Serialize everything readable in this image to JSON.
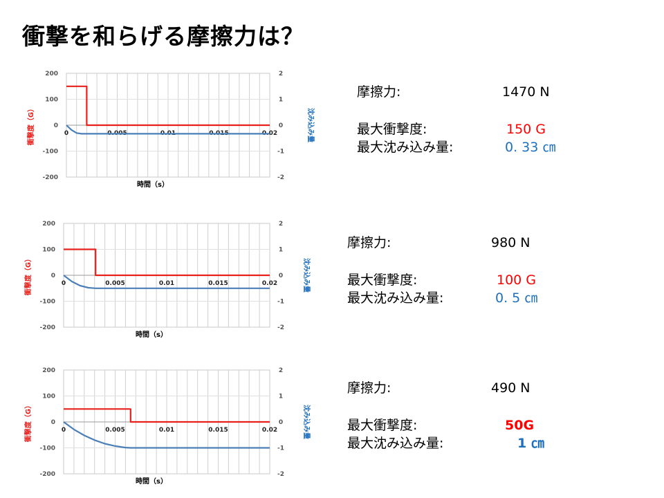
{
  "slide": {
    "title": "衝撃を和らげる摩擦力は？"
  },
  "chart_data": [
    {
      "type": "line",
      "x": [
        0,
        0.002,
        0.002,
        0.02
      ],
      "series": [
        {
          "name": "衝撃度（G）",
          "axis": "left",
          "color": "#e8201c",
          "x": [
            0,
            0.002,
            0.002,
            0.02
          ],
          "values": [
            150,
            150,
            0,
            0
          ]
        },
        {
          "name": "沈み込み量",
          "axis": "right",
          "color": "#4a7fb8",
          "x": [
            0,
            0.0005,
            0.001,
            0.0015,
            0.002,
            0.0025,
            0.003,
            0.02
          ],
          "values": [
            0,
            -0.18,
            -0.3,
            -0.33,
            -0.33,
            -0.33,
            -0.33,
            -0.33
          ]
        }
      ],
      "xlabel": "時間（s）",
      "ylabel": "衝撃度（G）",
      "y2label": "沈み込み量",
      "xlim": [
        0,
        0.02
      ],
      "ylim": [
        -200,
        200
      ],
      "y2lim": [
        -2,
        2
      ],
      "xticks": [
        "0",
        "0.005",
        "0.01",
        "0.015",
        "0.02"
      ],
      "yticks": [
        "200",
        "100",
        "0",
        "-100",
        "-200"
      ],
      "y2ticks": [
        "2",
        "1",
        "0",
        "-1",
        "-2"
      ],
      "grid": true
    },
    {
      "type": "line",
      "x": [
        0,
        0.0031,
        0.0031,
        0.02
      ],
      "series": [
        {
          "name": "衝撃度（G）",
          "axis": "left",
          "color": "#e8201c",
          "x": [
            0,
            0.0031,
            0.0031,
            0.02
          ],
          "values": [
            100,
            100,
            0,
            0
          ]
        },
        {
          "name": "沈み込み量",
          "axis": "right",
          "color": "#4a7fb8",
          "x": [
            0,
            0.0008,
            0.0016,
            0.0024,
            0.0031,
            0.004,
            0.02
          ],
          "values": [
            0,
            -0.24,
            -0.4,
            -0.48,
            -0.5,
            -0.5,
            -0.5
          ]
        }
      ],
      "xlabel": "時間（s）",
      "ylabel": "衝撃度（G）",
      "y2label": "沈み込み量",
      "xlim": [
        0,
        0.02
      ],
      "ylim": [
        -200,
        200
      ],
      "y2lim": [
        -2,
        2
      ],
      "xticks": [
        "0",
        "0.005",
        "0.01",
        "0.015",
        "0.02"
      ],
      "yticks": [
        "200",
        "100",
        "0",
        "-100",
        "-200"
      ],
      "y2ticks": [
        "2",
        "1",
        "0",
        "-1",
        "-2"
      ],
      "grid": true
    },
    {
      "type": "line",
      "x": [
        0,
        0.0065,
        0.0065,
        0.02
      ],
      "series": [
        {
          "name": "衝撃度（G）",
          "axis": "left",
          "color": "#e8201c",
          "x": [
            0,
            0.0065,
            0.0065,
            0.02
          ],
          "values": [
            50,
            50,
            0,
            0
          ]
        },
        {
          "name": "沈み込み量",
          "axis": "right",
          "color": "#4a7fb8",
          "x": [
            0,
            0.001,
            0.002,
            0.003,
            0.004,
            0.005,
            0.006,
            0.0065,
            0.02
          ],
          "values": [
            0,
            -0.29,
            -0.52,
            -0.7,
            -0.84,
            -0.93,
            -0.99,
            -1.0,
            -1.0
          ]
        }
      ],
      "xlabel": "時間（s）",
      "ylabel": "衝撃度（G）",
      "y2label": "沈み込み量",
      "xlim": [
        0,
        0.02
      ],
      "ylim": [
        -200,
        200
      ],
      "y2lim": [
        -2,
        2
      ],
      "xticks": [
        "0",
        "0.005",
        "0.01",
        "0.015",
        "0.02"
      ],
      "yticks": [
        "200",
        "100",
        "0",
        "-100",
        "-200"
      ],
      "y2ticks": [
        "2",
        "1",
        "0",
        "-1",
        "-2"
      ],
      "grid": true
    }
  ],
  "panels": [
    {
      "friction_label": "摩擦力:",
      "friction_value": "1470 N",
      "shock_label": "最大衝撃度:",
      "shock_value": "150 G",
      "sink_label": "最大沈み込み量:",
      "sink_value": "0. 33 ㎝"
    },
    {
      "friction_label": "摩擦力:",
      "friction_value": "980 N",
      "shock_label": "最大衝撃度:",
      "shock_value": "100 G",
      "sink_label": "最大沈み込み量:",
      "sink_value": "0. 5 ㎝"
    },
    {
      "friction_label": "摩擦力:",
      "friction_value": "490 N",
      "shock_label": "最大衝撃度:",
      "shock_value": "50G",
      "sink_label": "最大沈み込み量:",
      "sink_value": "1 ㎝"
    }
  ]
}
